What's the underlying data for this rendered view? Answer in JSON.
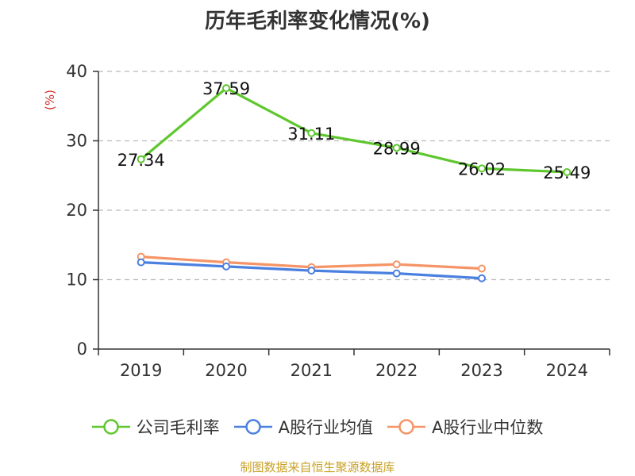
{
  "chart_data": {
    "type": "line",
    "title": "历年毛利率变化情况(%)",
    "ylabel": "(%)",
    "ylim": [
      0,
      40
    ],
    "yticks": [
      0,
      10,
      20,
      30,
      40
    ],
    "categories": [
      "2019",
      "2020",
      "2021",
      "2022",
      "2023",
      "2024"
    ],
    "grid": true,
    "legend_position": "bottom",
    "series": [
      {
        "name": "公司毛利率",
        "color": "#5ec72e",
        "values": [
          27.34,
          37.59,
          31.11,
          28.99,
          26.02,
          25.49
        ],
        "labels": [
          "27.34",
          "37.59",
          "31.11",
          "28.99",
          "26.02",
          "25.49"
        ]
      },
      {
        "name": "A股行业均值",
        "color": "#4a80e0",
        "values": [
          12.5,
          11.9,
          11.3,
          10.9,
          10.2,
          null
        ]
      },
      {
        "name": "A股行业中位数",
        "color": "#f59466",
        "values": [
          13.3,
          12.5,
          11.8,
          12.2,
          11.6,
          null
        ]
      }
    ]
  },
  "source": "制图数据来自恒生聚源数据库"
}
